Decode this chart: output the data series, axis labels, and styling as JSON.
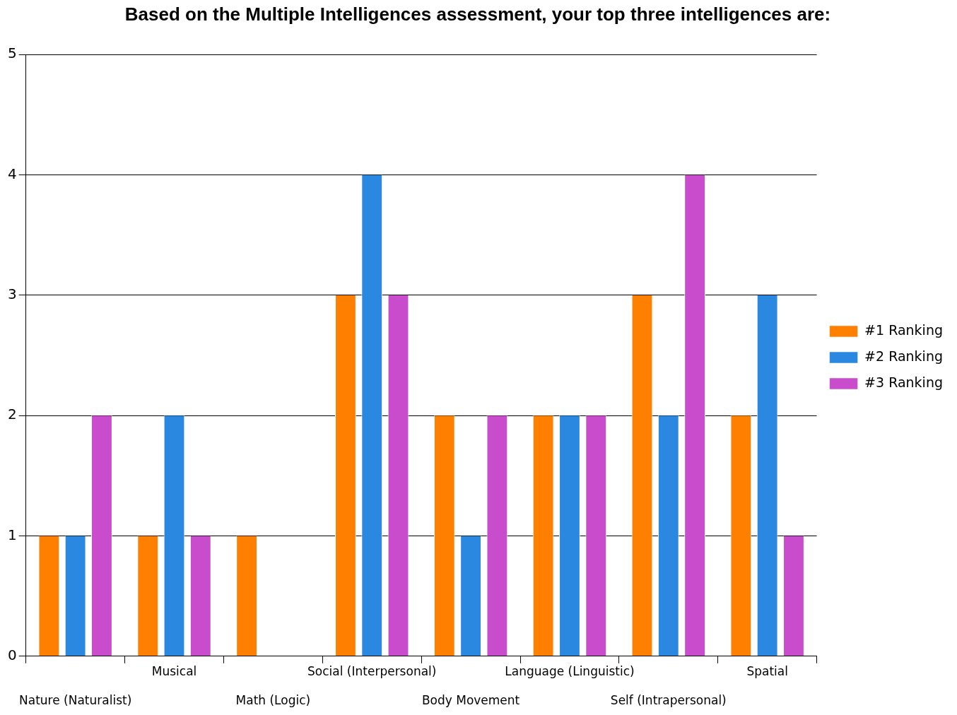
{
  "chart_data": {
    "type": "bar",
    "title": "Based on the Multiple Intelligences assessment, your top three intelligences are:",
    "categories": [
      "Nature (Naturalist)",
      "Musical",
      "Math (Logic)",
      "Social (Interpersonal)",
      "Body Movement",
      "Language (Linguistic)",
      "Self (Intrapersonal)",
      "Spatial"
    ],
    "series": [
      {
        "name": "#1 Ranking",
        "color": "#ff8000",
        "values": [
          1,
          1,
          1,
          3,
          2,
          2,
          3,
          2
        ]
      },
      {
        "name": "#2 Ranking",
        "color": "#2b88e0",
        "values": [
          1,
          2,
          0,
          4,
          1,
          2,
          2,
          3
        ]
      },
      {
        "name": "#3 Ranking",
        "color": "#c84ccc",
        "values": [
          2,
          1,
          0,
          3,
          2,
          2,
          4,
          1
        ]
      }
    ],
    "ylim": [
      0,
      5
    ],
    "yticks": [
      0,
      1,
      2,
      3,
      4,
      5
    ],
    "grid": "y",
    "legend": "right"
  }
}
